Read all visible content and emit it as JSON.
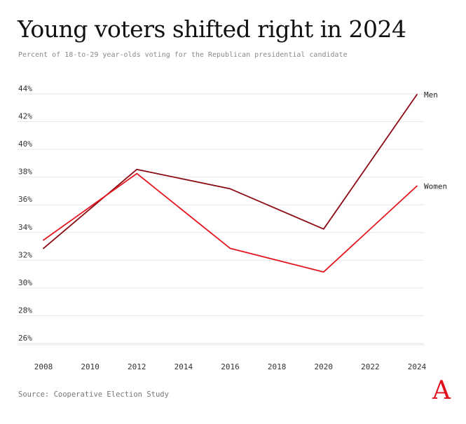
{
  "header": {
    "title": "Young voters shifted right in 2024",
    "subtitle": "Percent of 18-to-29 year-olds voting for the Republican presidential candidate"
  },
  "footer": {
    "source": "Source: Cooperative Election Study",
    "logo": "A"
  },
  "colors": {
    "men": "#8b0a14",
    "women": "#e3161e",
    "grid": "#e6e6e6",
    "logo": "#e0101e"
  },
  "chart_data": {
    "type": "line",
    "title": "Young voters shifted right in 2024",
    "subtitle": "Percent of 18-to-29 year-olds voting for the Republican presidential candidate",
    "xlabel": "",
    "ylabel": "",
    "xlim": [
      2008,
      2024
    ],
    "ylim": [
      25,
      44
    ],
    "x_ticks": [
      2008,
      2010,
      2012,
      2014,
      2016,
      2018,
      2020,
      2022,
      2024
    ],
    "y_ticks": [
      26,
      28,
      30,
      32,
      34,
      36,
      38,
      40,
      42,
      44
    ],
    "y_tick_suffix": "%",
    "grid": true,
    "series": [
      {
        "name": "Men",
        "x": [
          2008,
          2012,
          2016,
          2020,
          2024
        ],
        "values": [
          32.5,
          38.2,
          36.8,
          33.9,
          43.6
        ]
      },
      {
        "name": "Women",
        "x": [
          2008,
          2012,
          2016,
          2020,
          2024
        ],
        "values": [
          33.1,
          37.9,
          32.5,
          30.8,
          37.0
        ]
      }
    ],
    "source": "Source: Cooperative Election Study"
  }
}
